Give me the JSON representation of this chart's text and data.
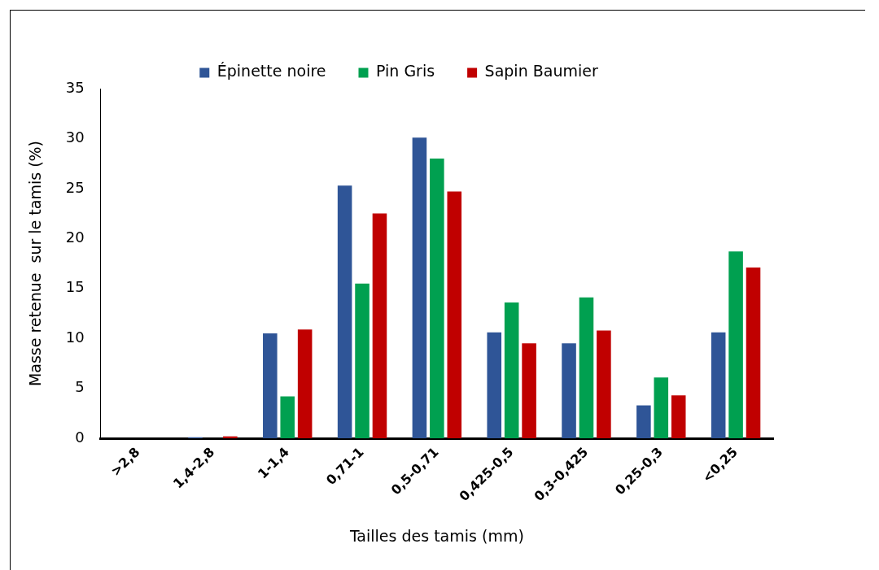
{
  "chart_data": {
    "type": "bar",
    "xlabel": "Tailles des tamis (mm)",
    "ylabel": "Masse retenue  sur le tamis (%)",
    "categories": [
      ">2,8",
      "1,4-2,8",
      "1-1,4",
      "0,71-1",
      "0,5-0,71",
      "0,425-0,5",
      "0,3-0,425",
      "0,25-0,3",
      "<0,25"
    ],
    "series": [
      {
        "name": "Épinette noire",
        "color": "#2f5597",
        "values": [
          0,
          0.1,
          10.5,
          25.3,
          30.1,
          10.6,
          9.5,
          3.3,
          10.6
        ]
      },
      {
        "name": "Pin Gris",
        "color": "#00a050",
        "values": [
          0,
          0,
          4.2,
          15.5,
          28.0,
          13.6,
          14.1,
          6.1,
          18.7
        ]
      },
      {
        "name": "Sapin Baumier",
        "color": "#c00000",
        "values": [
          0,
          0.2,
          10.9,
          22.5,
          24.7,
          9.5,
          10.8,
          4.3,
          17.1
        ]
      }
    ],
    "ylim": [
      0,
      35
    ],
    "yticks": [
      0,
      5,
      10,
      15,
      20,
      25,
      30,
      35
    ],
    "grid": false,
    "legend": "top"
  }
}
